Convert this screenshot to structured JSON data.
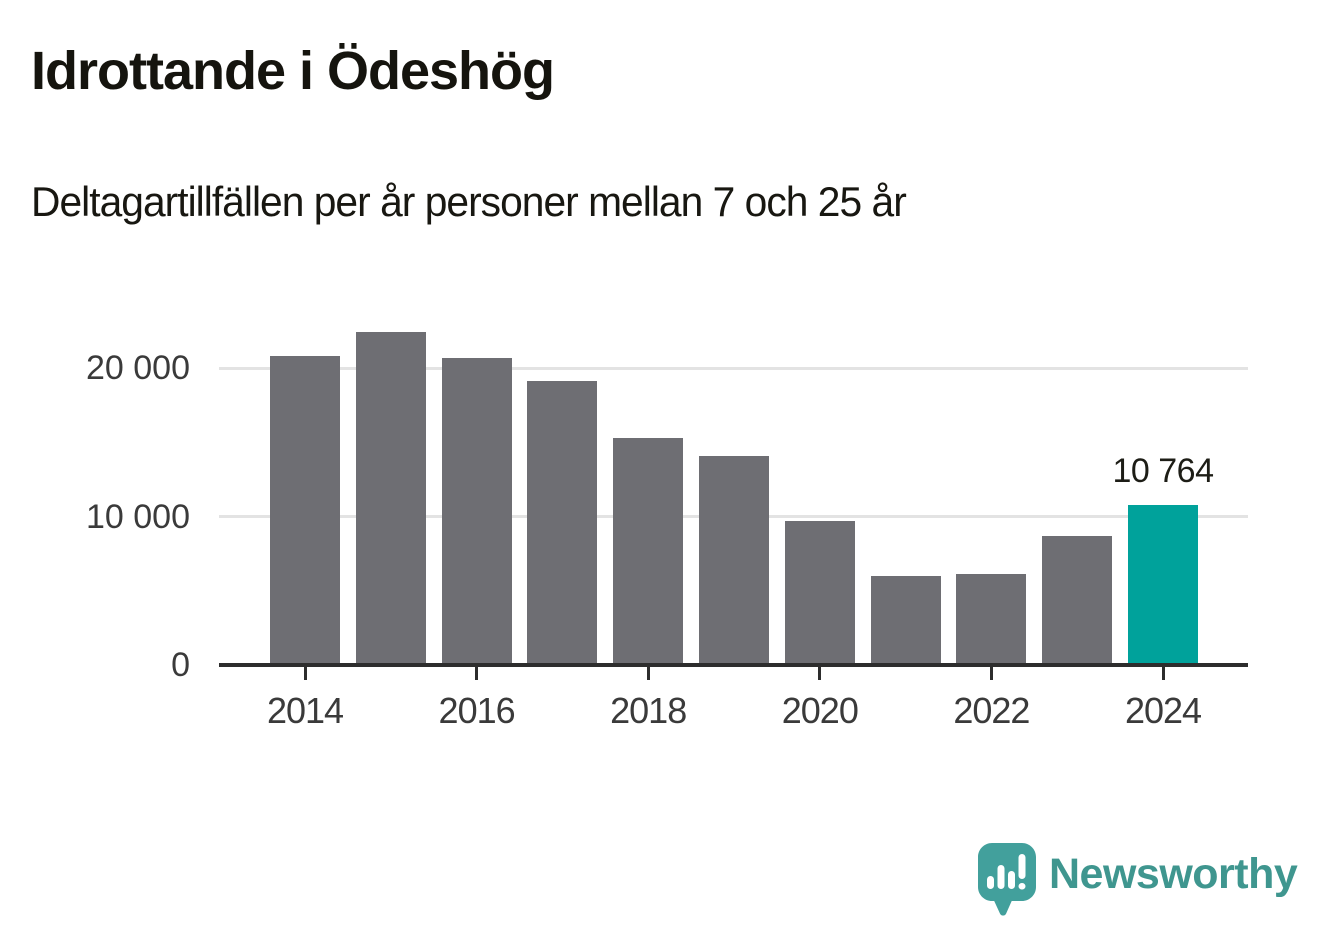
{
  "header": {
    "title": "Idrottande i Ödeshög",
    "subtitle": "Deltagartillfällen per år personer mellan 7 och 25 år"
  },
  "chart_data": {
    "type": "bar",
    "title": "Idrottande i Ödeshög",
    "subtitle": "Deltagartillfällen per år personer mellan 7 och 25 år",
    "categories": [
      "2014",
      "2015",
      "2016",
      "2017",
      "2018",
      "2019",
      "2020",
      "2021",
      "2022",
      "2023",
      "2024"
    ],
    "values": [
      20800,
      22400,
      20700,
      19100,
      15300,
      14100,
      9700,
      6000,
      6100,
      8700,
      10764
    ],
    "highlight_index": 10,
    "data_label": {
      "index": 10,
      "text": "10 764"
    },
    "xticks": [
      "2014",
      "2016",
      "2018",
      "2020",
      "2022",
      "2024"
    ],
    "yticks": [
      {
        "value": 0,
        "label": "0"
      },
      {
        "value": 10000,
        "label": "10 000"
      },
      {
        "value": 20000,
        "label": "20 000"
      }
    ],
    "ylim": [
      0,
      22600
    ],
    "grid": "horizontal-only",
    "legend": "none",
    "bar_color": "#6e6e73",
    "highlight_color": "#00a29b",
    "gridline_color": "#e3e3e3",
    "axis_color": "#2d2d2d",
    "label_color": "#3a3a3a"
  },
  "branding": {
    "logo_text": "Newsworthy",
    "logo_text_color": "#3f968f",
    "logo_mark_color": "#42a09c"
  }
}
